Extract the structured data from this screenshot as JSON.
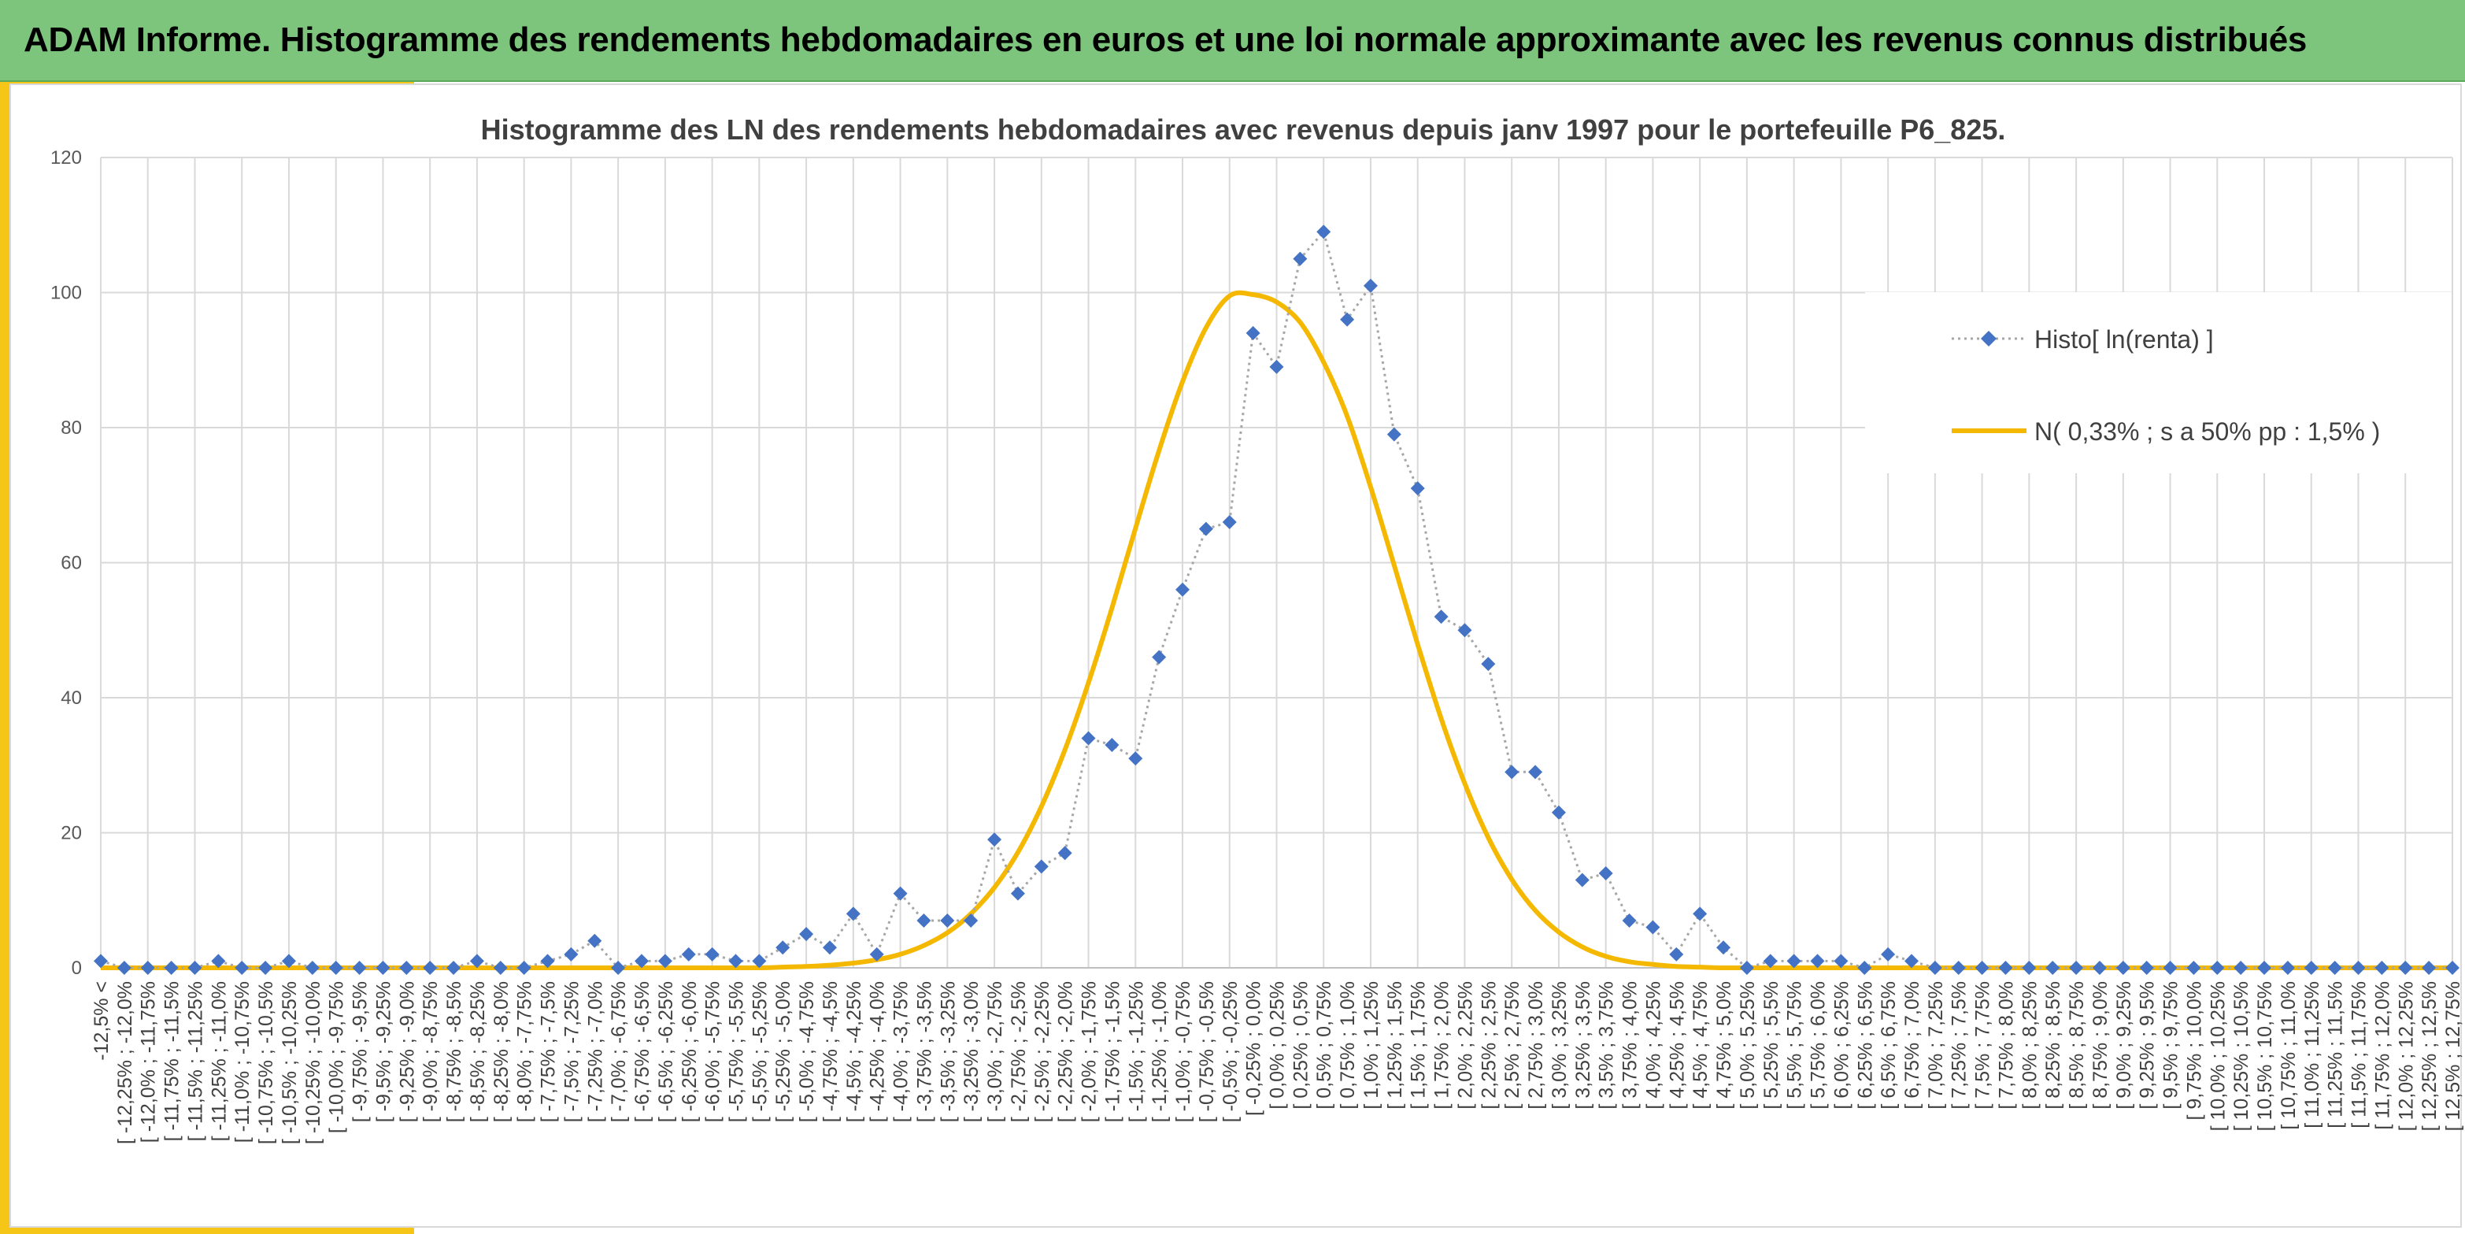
{
  "header": {
    "title": "ADAM Informe. Histogramme des rendements hebdomadaires en euros et une loi normale approximante avec les revenus connus distribués"
  },
  "colors": {
    "header_bg": "#7dc57c",
    "accent": "#f5c518",
    "histo_marker": "#4472c4",
    "histo_line": "#a6a6a6",
    "normal_line": "#f5b800"
  },
  "chart_data": {
    "type": "line",
    "title": "Histogramme des LN des rendements hebdomadaires avec revenus depuis janv 1997 pour le portefeuille P6_825.",
    "ylim": [
      0,
      120
    ],
    "y_ticks": [
      0,
      20,
      40,
      60,
      80,
      100,
      120
    ],
    "grid": true,
    "legend_position": "right",
    "categories": [
      "-12,5% <",
      "[ -12,25% ; -12,0%",
      "[ -12,0% ; -11,75%",
      "[ -11,75% ; -11,5%",
      "[ -11,5% ; -11,25%",
      "[ -11,25% ; -11,0%",
      "[ -11,0% ; -10,75%",
      "[ -10,75% ; -10,5%",
      "[ -10,5% ; -10,25%",
      "[ -10,25% ; -10,0%",
      "[ -10,0% ; -9,75%",
      "[ -9,75% ; -9,5%",
      "[ -9,5% ; -9,25%",
      "[ -9,25% ; -9,0%",
      "[ -9,0% ; -8,75%",
      "[ -8,75% ; -8,5%",
      "[ -8,5% ; -8,25%",
      "[ -8,25% ; -8,0%",
      "[ -8,0% ; -7,75%",
      "[ -7,75% ; -7,5%",
      "[ -7,5% ; -7,25%",
      "[ -7,25% ; -7,0%",
      "[ -7,0% ; -6,75%",
      "[ -6,75% ; -6,5%",
      "[ -6,5% ; -6,25%",
      "[ -6,25% ; -6,0%",
      "[ -6,0% ; -5,75%",
      "[ -5,75% ; -5,5%",
      "[ -5,5% ; -5,25%",
      "[ -5,25% ; -5,0%",
      "[ -5,0% ; -4,75%",
      "[ -4,75% ; -4,5%",
      "[ -4,5% ; -4,25%",
      "[ -4,25% ; -4,0%",
      "[ -4,0% ; -3,75%",
      "[ -3,75% ; -3,5%",
      "[ -3,5% ; -3,25%",
      "[ -3,25% ; -3,0%",
      "[ -3,0% ; -2,75%",
      "[ -2,75% ; -2,5%",
      "[ -2,5% ; -2,25%",
      "[ -2,25% ; -2,0%",
      "[ -2,0% ; -1,75%",
      "[ -1,75% ; -1,5%",
      "[ -1,5% ; -1,25%",
      "[ -1,25% ; -1,0%",
      "[ -1,0% ; -0,75%",
      "[ -0,75% ; -0,5%",
      "[ -0,5% ; -0,25%",
      "[ -0,25% ; 0,0%",
      "[ 0,0% ; 0,25%",
      "[ 0,25% ; 0,5%",
      "[ 0,5% ; 0,75%",
      "[ 0,75% ; 1,0%",
      "[ 1,0% ; 1,25%",
      "[ 1,25% ; 1,5%",
      "[ 1,5% ; 1,75%",
      "[ 1,75% ; 2,0%",
      "[ 2,0% ; 2,25%",
      "[ 2,25% ; 2,5%",
      "[ 2,5% ; 2,75%",
      "[ 2,75% ; 3,0%",
      "[ 3,0% ; 3,25%",
      "[ 3,25% ; 3,5%",
      "[ 3,5% ; 3,75%",
      "[ 3,75% ; 4,0%",
      "[ 4,0% ; 4,25%",
      "[ 4,25% ; 4,5%",
      "[ 4,5% ; 4,75%",
      "[ 4,75% ; 5,0%",
      "[ 5,0% ; 5,25%",
      "[ 5,25% ; 5,5%",
      "[ 5,5% ; 5,75%",
      "[ 5,75% ; 6,0%",
      "[ 6,0% ; 6,25%",
      "[ 6,25% ; 6,5%",
      "[ 6,5% ; 6,75%",
      "[ 6,75% ; 7,0%",
      "[ 7,0% ; 7,25%",
      "[ 7,25% ; 7,5%",
      "[ 7,5% ; 7,75%",
      "[ 7,75% ; 8,0%",
      "[ 8,0% ; 8,25%",
      "[ 8,25% ; 8,5%",
      "[ 8,5% ; 8,75%",
      "[ 8,75% ; 9,0%",
      "[ 9,0% ; 9,25%",
      "[ 9,25% ; 9,5%",
      "[ 9,5% ; 9,75%",
      "[ 9,75% ; 10,0%",
      "[ 10,0% ; 10,25%",
      "[ 10,25% ; 10,5%",
      "[ 10,5% ; 10,75%",
      "[ 10,75% ; 11,0%",
      "[ 11,0% ; 11,25%",
      "[ 11,25% ; 11,5%",
      "[ 11,5% ; 11,75%",
      "[ 11,75% ; 12,0%",
      "[ 12,0% ; 12,25%",
      "[ 12,25% ; 12,5%",
      "[ 12,5% ; 12,75%"
    ],
    "series": [
      {
        "name": "Histo[ ln(renta) ]",
        "kind": "markers-dotted",
        "values": [
          1,
          0,
          0,
          0,
          0,
          1,
          0,
          0,
          1,
          0,
          0,
          0,
          0,
          0,
          0,
          0,
          1,
          0,
          0,
          1,
          2,
          4,
          0,
          1,
          1,
          2,
          2,
          1,
          1,
          3,
          5,
          3,
          8,
          2,
          11,
          7,
          7,
          7,
          19,
          11,
          15,
          17,
          34,
          33,
          31,
          46,
          56,
          65,
          66,
          94,
          89,
          105,
          109,
          96,
          101,
          79,
          71,
          52,
          50,
          45,
          29,
          29,
          23,
          13,
          14,
          7,
          6,
          2,
          8,
          3,
          0,
          1,
          1,
          1,
          1,
          0,
          2,
          1,
          0,
          0,
          0,
          0,
          0,
          0,
          0,
          0,
          0,
          0,
          0,
          0,
          0,
          0,
          0,
          0,
          0,
          0,
          0,
          0,
          0,
          0,
          0
        ]
      },
      {
        "name": "N( 0,33% ; s a 50% pp : 1,5% )",
        "kind": "line",
        "values": [
          0,
          0,
          0,
          0,
          0,
          0,
          0,
          0,
          0,
          0,
          0,
          0,
          0,
          0,
          0,
          0,
          0,
          0,
          0,
          0,
          0,
          0,
          0,
          0,
          0,
          0,
          0,
          0,
          0,
          0.1,
          0.2,
          0.4,
          0.7,
          1.2,
          2,
          3.3,
          5.2,
          8,
          11.9,
          17.1,
          23.9,
          32.3,
          42.2,
          53.3,
          65.1,
          76.6,
          86.8,
          94.8,
          99.5,
          99.7,
          98.6,
          95.6,
          89.7,
          81.7,
          71.2,
          59.6,
          47.9,
          36.9,
          27.3,
          19.3,
          13.1,
          8.5,
          5.3,
          3.1,
          1.7,
          0.9,
          0.5,
          0.2,
          0.1,
          0,
          0,
          0,
          0,
          0,
          0,
          0,
          0,
          0,
          0,
          0,
          0,
          0,
          0,
          0,
          0,
          0,
          0,
          0,
          0,
          0,
          0,
          0,
          0,
          0,
          0,
          0,
          0,
          0,
          0,
          0,
          0
        ]
      }
    ]
  }
}
